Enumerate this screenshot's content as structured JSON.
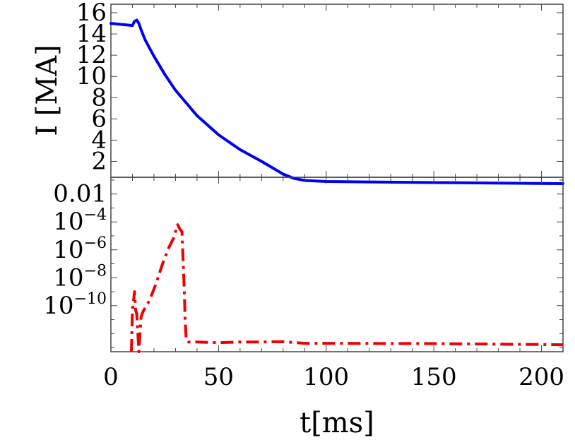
{
  "chart_data": [
    {
      "panel": "top",
      "type": "line",
      "ylabel": "I [MA]",
      "xlim": [
        0,
        210
      ],
      "ylim": [
        0.5,
        16.8
      ],
      "yticks": [
        2,
        4,
        6,
        8,
        10,
        12,
        14,
        16
      ],
      "ytick_labels": [
        "2",
        "4",
        "6",
        "8",
        "10",
        "12",
        "14",
        "16"
      ],
      "series": [
        {
          "color": "#0000ee",
          "style": "solid",
          "x": [
            0,
            5,
            10,
            11,
            12,
            13,
            14,
            16,
            20,
            25,
            30,
            40,
            50,
            60,
            70,
            75,
            80,
            85,
            90,
            100,
            150,
            210
          ],
          "y": [
            15.0,
            14.9,
            14.8,
            15.2,
            15.3,
            15.0,
            14.4,
            13.4,
            11.9,
            10.2,
            8.7,
            6.3,
            4.5,
            3.1,
            2.0,
            1.4,
            0.8,
            0.4,
            0.2,
            0.1,
            0.0,
            -0.1
          ]
        }
      ]
    },
    {
      "panel": "bottom",
      "type": "line",
      "yscale": "log",
      "xlabel": "t[ms]",
      "xlim": [
        0,
        210
      ],
      "xticks": [
        0,
        50,
        100,
        150,
        200
      ],
      "xtick_labels": [
        "0",
        "50",
        "100",
        "150",
        "200"
      ],
      "ylog_range": [
        -13.3,
        -0.8
      ],
      "yticks_log": [
        -2,
        -4,
        -6,
        -8,
        -10
      ],
      "ytick_labels": [
        {
          "base": "0.01",
          "exp": ""
        },
        {
          "base": "10",
          "exp": "−4"
        },
        {
          "base": "10",
          "exp": "−6"
        },
        {
          "base": "10",
          "exp": "−8"
        },
        {
          "base": "10",
          "exp": "−10"
        }
      ],
      "series": [
        {
          "color": "#ee0000",
          "style": "dashdot",
          "x": [
            9.5,
            10,
            11,
            11.5,
            12,
            13,
            14,
            15,
            18,
            21,
            24,
            27,
            29,
            30,
            31,
            32,
            33,
            34,
            34.5,
            35,
            36,
            37,
            38,
            40,
            50,
            60,
            70,
            80,
            90,
            100,
            150,
            210
          ],
          "y_log10": [
            -13.3,
            -10.3,
            -9.0,
            -10.3,
            -10.6,
            -13.3,
            -10.8,
            -10.4,
            -9.6,
            -8.4,
            -7.0,
            -5.8,
            -5.2,
            -4.7,
            -4.2,
            -4.5,
            -4.7,
            -8.5,
            -11.0,
            -12.5,
            -12.6,
            -12.6,
            -12.6,
            -12.6,
            -12.65,
            -12.6,
            -12.6,
            -12.58,
            -12.7,
            -12.7,
            -12.72,
            -12.8
          ]
        }
      ]
    }
  ]
}
